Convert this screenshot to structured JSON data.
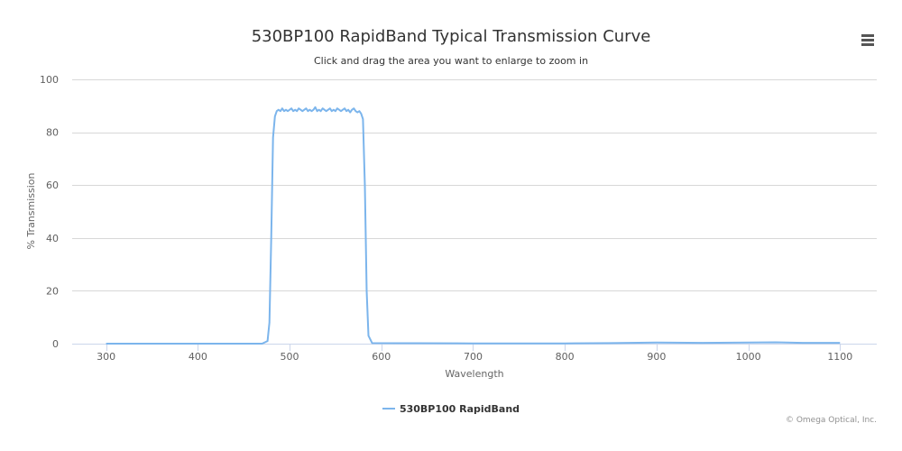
{
  "chart_data": {
    "type": "line",
    "title": "530BP100 RapidBand Typical Transmission Curve",
    "subtitle": "Click and drag the area you want to enlarge to zoom in",
    "xlabel": "Wavelength",
    "ylabel": "% Transmission",
    "xlim": [
      263,
      1140
    ],
    "ylim": [
      0,
      100
    ],
    "x_ticks": [
      300,
      400,
      500,
      600,
      700,
      800,
      900,
      1000,
      1100
    ],
    "y_ticks": [
      0,
      20,
      40,
      60,
      80,
      100
    ],
    "grid": true,
    "legend": "bottom-center",
    "series": [
      {
        "name": "530BP100 RapidBand",
        "color": "#7cb5ec",
        "x": [
          300,
          470,
          476,
          478,
          480,
          482,
          484,
          486,
          488,
          490,
          492,
          494,
          496,
          498,
          500,
          502,
          504,
          506,
          508,
          510,
          512,
          514,
          516,
          518,
          520,
          522,
          524,
          526,
          528,
          530,
          532,
          534,
          536,
          538,
          540,
          542,
          544,
          546,
          548,
          550,
          552,
          554,
          556,
          558,
          560,
          562,
          564,
          566,
          568,
          570,
          572,
          574,
          576,
          578,
          580,
          582,
          584,
          586,
          590,
          700,
          800,
          850,
          900,
          950,
          1000,
          1030,
          1060,
          1100
        ],
        "y": [
          0,
          0,
          1,
          8,
          40,
          78,
          86,
          88,
          88.5,
          88,
          89,
          88,
          88.5,
          88,
          88.5,
          89,
          88,
          88.5,
          88,
          89,
          88.5,
          88,
          88.5,
          89,
          88,
          88.5,
          88,
          88.5,
          89.5,
          88,
          88.5,
          88,
          89,
          88.5,
          88,
          88.5,
          89,
          88,
          88.5,
          88,
          89,
          88.5,
          88,
          88.5,
          89,
          88,
          88.5,
          87.5,
          88.5,
          89,
          88,
          87.5,
          88,
          87,
          85,
          60,
          20,
          3,
          0.2,
          0.1,
          0.1,
          0.2,
          0.4,
          0.3,
          0.4,
          0.5,
          0.3,
          0.3
        ]
      }
    ]
  },
  "menu": {
    "icon": "hamburger-menu-icon"
  },
  "credit": "© Omega Optical, Inc."
}
